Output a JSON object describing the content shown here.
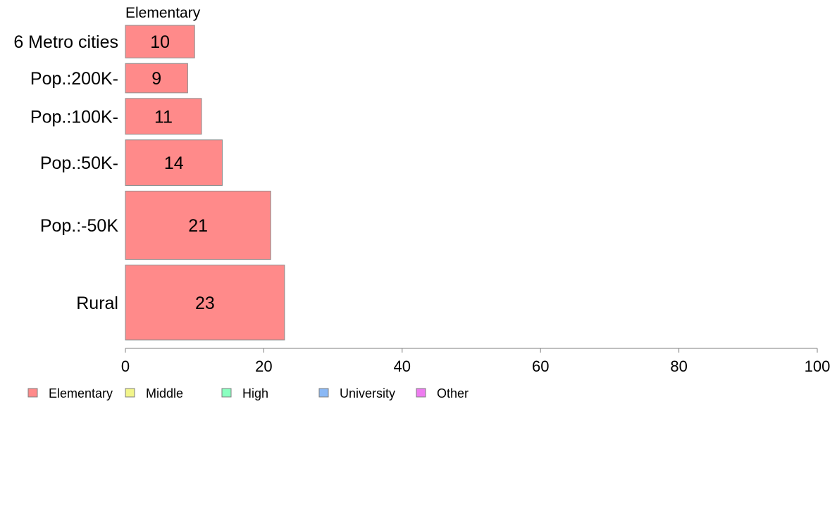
{
  "chart_data": {
    "type": "bar",
    "orientation": "horizontal",
    "title": "Elementary",
    "categories": [
      "6 Metro cities",
      "Pop.:200K-",
      "Pop.:100K-",
      "Pop.:50K-",
      "Pop.:-50K",
      "Rural"
    ],
    "series": [
      {
        "name": "Elementary",
        "values": [
          10,
          9,
          11,
          14,
          21,
          23
        ],
        "color": "#ff8a8a"
      }
    ],
    "value_labels": [
      "10",
      "9",
      "11",
      "14",
      "21",
      "23"
    ],
    "category_weights": [
      10,
      9,
      11,
      14,
      21,
      23
    ],
    "xlim": [
      0,
      100
    ],
    "xticks": [
      0,
      20,
      40,
      60,
      80,
      100
    ],
    "xtick_labels": [
      "0",
      "20",
      "40",
      "60",
      "80",
      "100"
    ],
    "grid": false,
    "legend_position": "bottom-left",
    "legend": [
      {
        "label": "Elementary",
        "color": "#ff8a8a"
      },
      {
        "label": "Middle",
        "color": "#f2f58a"
      },
      {
        "label": "High",
        "color": "#8affc0"
      },
      {
        "label": "University",
        "color": "#8ab8f5"
      },
      {
        "label": "Other",
        "color": "#ee7cf0"
      }
    ]
  }
}
